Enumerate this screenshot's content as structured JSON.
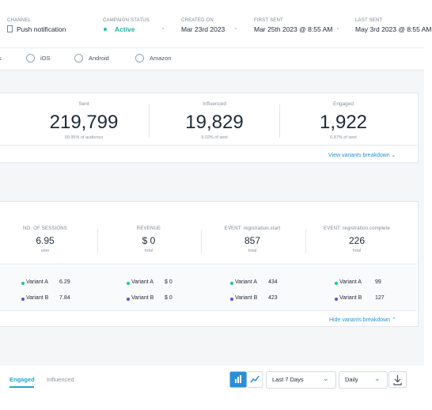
{
  "header": {
    "fields": [
      {
        "label": "CHANNEL",
        "value": "Push notification"
      },
      {
        "label": "CAMPAIGN STATUS",
        "value": "Active"
      },
      {
        "label": "CREATED ON",
        "value": "Mar 23rd 2023"
      },
      {
        "label": "FIRST SENT",
        "value": "Mar 25th 2023 @ 8:55 AM"
      },
      {
        "label": "LAST SENT",
        "value": "May 3rd 2023 @ 8:55 AM"
      }
    ]
  },
  "platforms": [
    "s",
    "iOS",
    "Android",
    "Amazon"
  ],
  "summary": {
    "stats": [
      {
        "label": "Sent",
        "value": "219,799",
        "note": "99.95% of audience"
      },
      {
        "label": "Influenced",
        "value": "19,829",
        "note": "9.02% of sent"
      },
      {
        "label": "Engaged",
        "value": "1,922",
        "note": "0.87% of sent"
      }
    ],
    "link": "View variants breakdown"
  },
  "metrics": {
    "stats": [
      {
        "label": "NO. OF SESSIONS",
        "value": "6.95",
        "note": "user",
        "variants": [
          "6.29",
          "7.84"
        ]
      },
      {
        "label": "REVENUE",
        "value": "$ 0",
        "note": "total",
        "variants": [
          "$ 0",
          "$ 0"
        ]
      },
      {
        "label": "EVENT: registration.start",
        "value": "857",
        "note": "total",
        "variants": [
          "434",
          "423"
        ]
      },
      {
        "label": "EVENT: registration.complete",
        "value": "226",
        "note": "total",
        "variants": [
          "99",
          "127"
        ]
      }
    ],
    "variant_names": [
      "Variant A",
      "Variant B"
    ],
    "link": "Hide variants breakdown"
  },
  "tabs": [
    "Engaged",
    "Influenced"
  ],
  "controls": {
    "range": "Last 7 Days",
    "interval": "Daily"
  }
}
